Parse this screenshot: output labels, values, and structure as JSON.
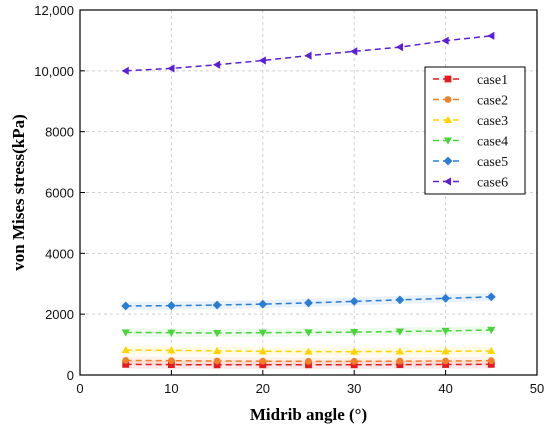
{
  "chart_data": {
    "type": "line",
    "xlabel": "Midrib angle (°)",
    "ylabel": "von Mises stress(kPa)",
    "xlim": [
      0,
      50
    ],
    "ylim": [
      0,
      12000
    ],
    "xticks": [
      0,
      10,
      20,
      30,
      40,
      50
    ],
    "xtick_labels": [
      "0",
      "10",
      "20",
      "30",
      "40",
      "50"
    ],
    "yticks": [
      0,
      2000,
      4000,
      6000,
      8000,
      10000,
      12000
    ],
    "ytick_labels": [
      "0",
      "2000",
      "4000",
      "6000",
      "8000",
      "10,000",
      "12,000"
    ],
    "grid": true,
    "legend_position": "top-right",
    "x": [
      5,
      10,
      15,
      20,
      25,
      30,
      35,
      40,
      45
    ],
    "series": [
      {
        "name": "case1",
        "color": "#e41a1c",
        "marker": "square",
        "values": [
          350,
          340,
          335,
          335,
          335,
          335,
          340,
          345,
          350
        ]
      },
      {
        "name": "case2",
        "color": "#f07f2a",
        "marker": "circle",
        "values": [
          480,
          470,
          460,
          455,
          450,
          450,
          455,
          460,
          470
        ]
      },
      {
        "name": "case3",
        "color": "#ffd400",
        "marker": "triangle-up",
        "values": [
          820,
          810,
          790,
          780,
          770,
          770,
          775,
          780,
          790
        ]
      },
      {
        "name": "case4",
        "color": "#49d43c",
        "marker": "triangle-down",
        "values": [
          1400,
          1390,
          1380,
          1390,
          1400,
          1410,
          1430,
          1450,
          1480
        ]
      },
      {
        "name": "case5",
        "color": "#2a7dd6",
        "marker": "diamond",
        "values": [
          2270,
          2280,
          2300,
          2330,
          2370,
          2420,
          2470,
          2520,
          2570
        ]
      },
      {
        "name": "case6",
        "color": "#5a1fd6",
        "marker": "triangle-left",
        "values": [
          10000,
          10080,
          10200,
          10340,
          10500,
          10640,
          10780,
          10990,
          11150
        ]
      }
    ]
  }
}
